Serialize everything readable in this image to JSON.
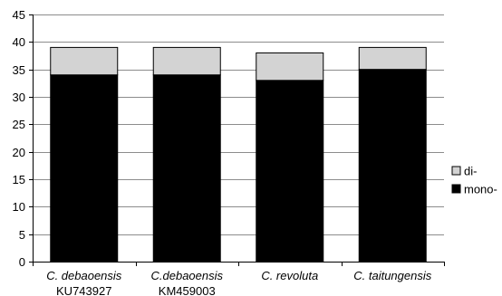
{
  "chart_data": {
    "type": "bar",
    "stacked": true,
    "categories": [
      [
        "C. debaoensis",
        "KU743927"
      ],
      [
        "C.debaoensis",
        "KM459003"
      ],
      [
        "C. revoluta",
        ""
      ],
      [
        "C. taitungensis",
        ""
      ]
    ],
    "series": [
      {
        "name": "mono-",
        "values": [
          34,
          34,
          33,
          35
        ],
        "color": "#000000"
      },
      {
        "name": "di-",
        "values": [
          5,
          5,
          5,
          4
        ],
        "color": "#d3d3d3"
      }
    ],
    "ylim": [
      0,
      45
    ],
    "yticks": [
      0,
      5,
      10,
      15,
      20,
      25,
      30,
      35,
      40,
      45
    ],
    "grid": true,
    "legend_position": "right",
    "legend_order": [
      "di-",
      "mono-"
    ]
  }
}
